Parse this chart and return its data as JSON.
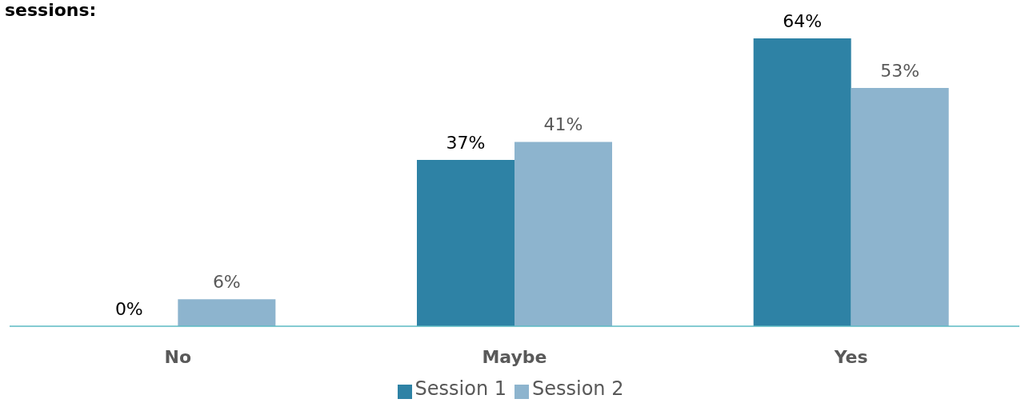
{
  "chart_data": {
    "type": "bar",
    "title": "sessions:",
    "categories": [
      "No",
      "Maybe",
      "Yes"
    ],
    "series": [
      {
        "name": "Session 1",
        "color": "#2e82a5",
        "values": [
          0,
          37,
          64
        ],
        "value_labels": [
          "0%",
          "37%",
          "64%"
        ]
      },
      {
        "name": "Session 2",
        "color": "#8db4ce",
        "values": [
          6,
          41,
          53
        ],
        "value_labels": [
          "6%",
          "41%",
          "53%"
        ]
      }
    ],
    "legend": "bottom",
    "grid": false
  }
}
